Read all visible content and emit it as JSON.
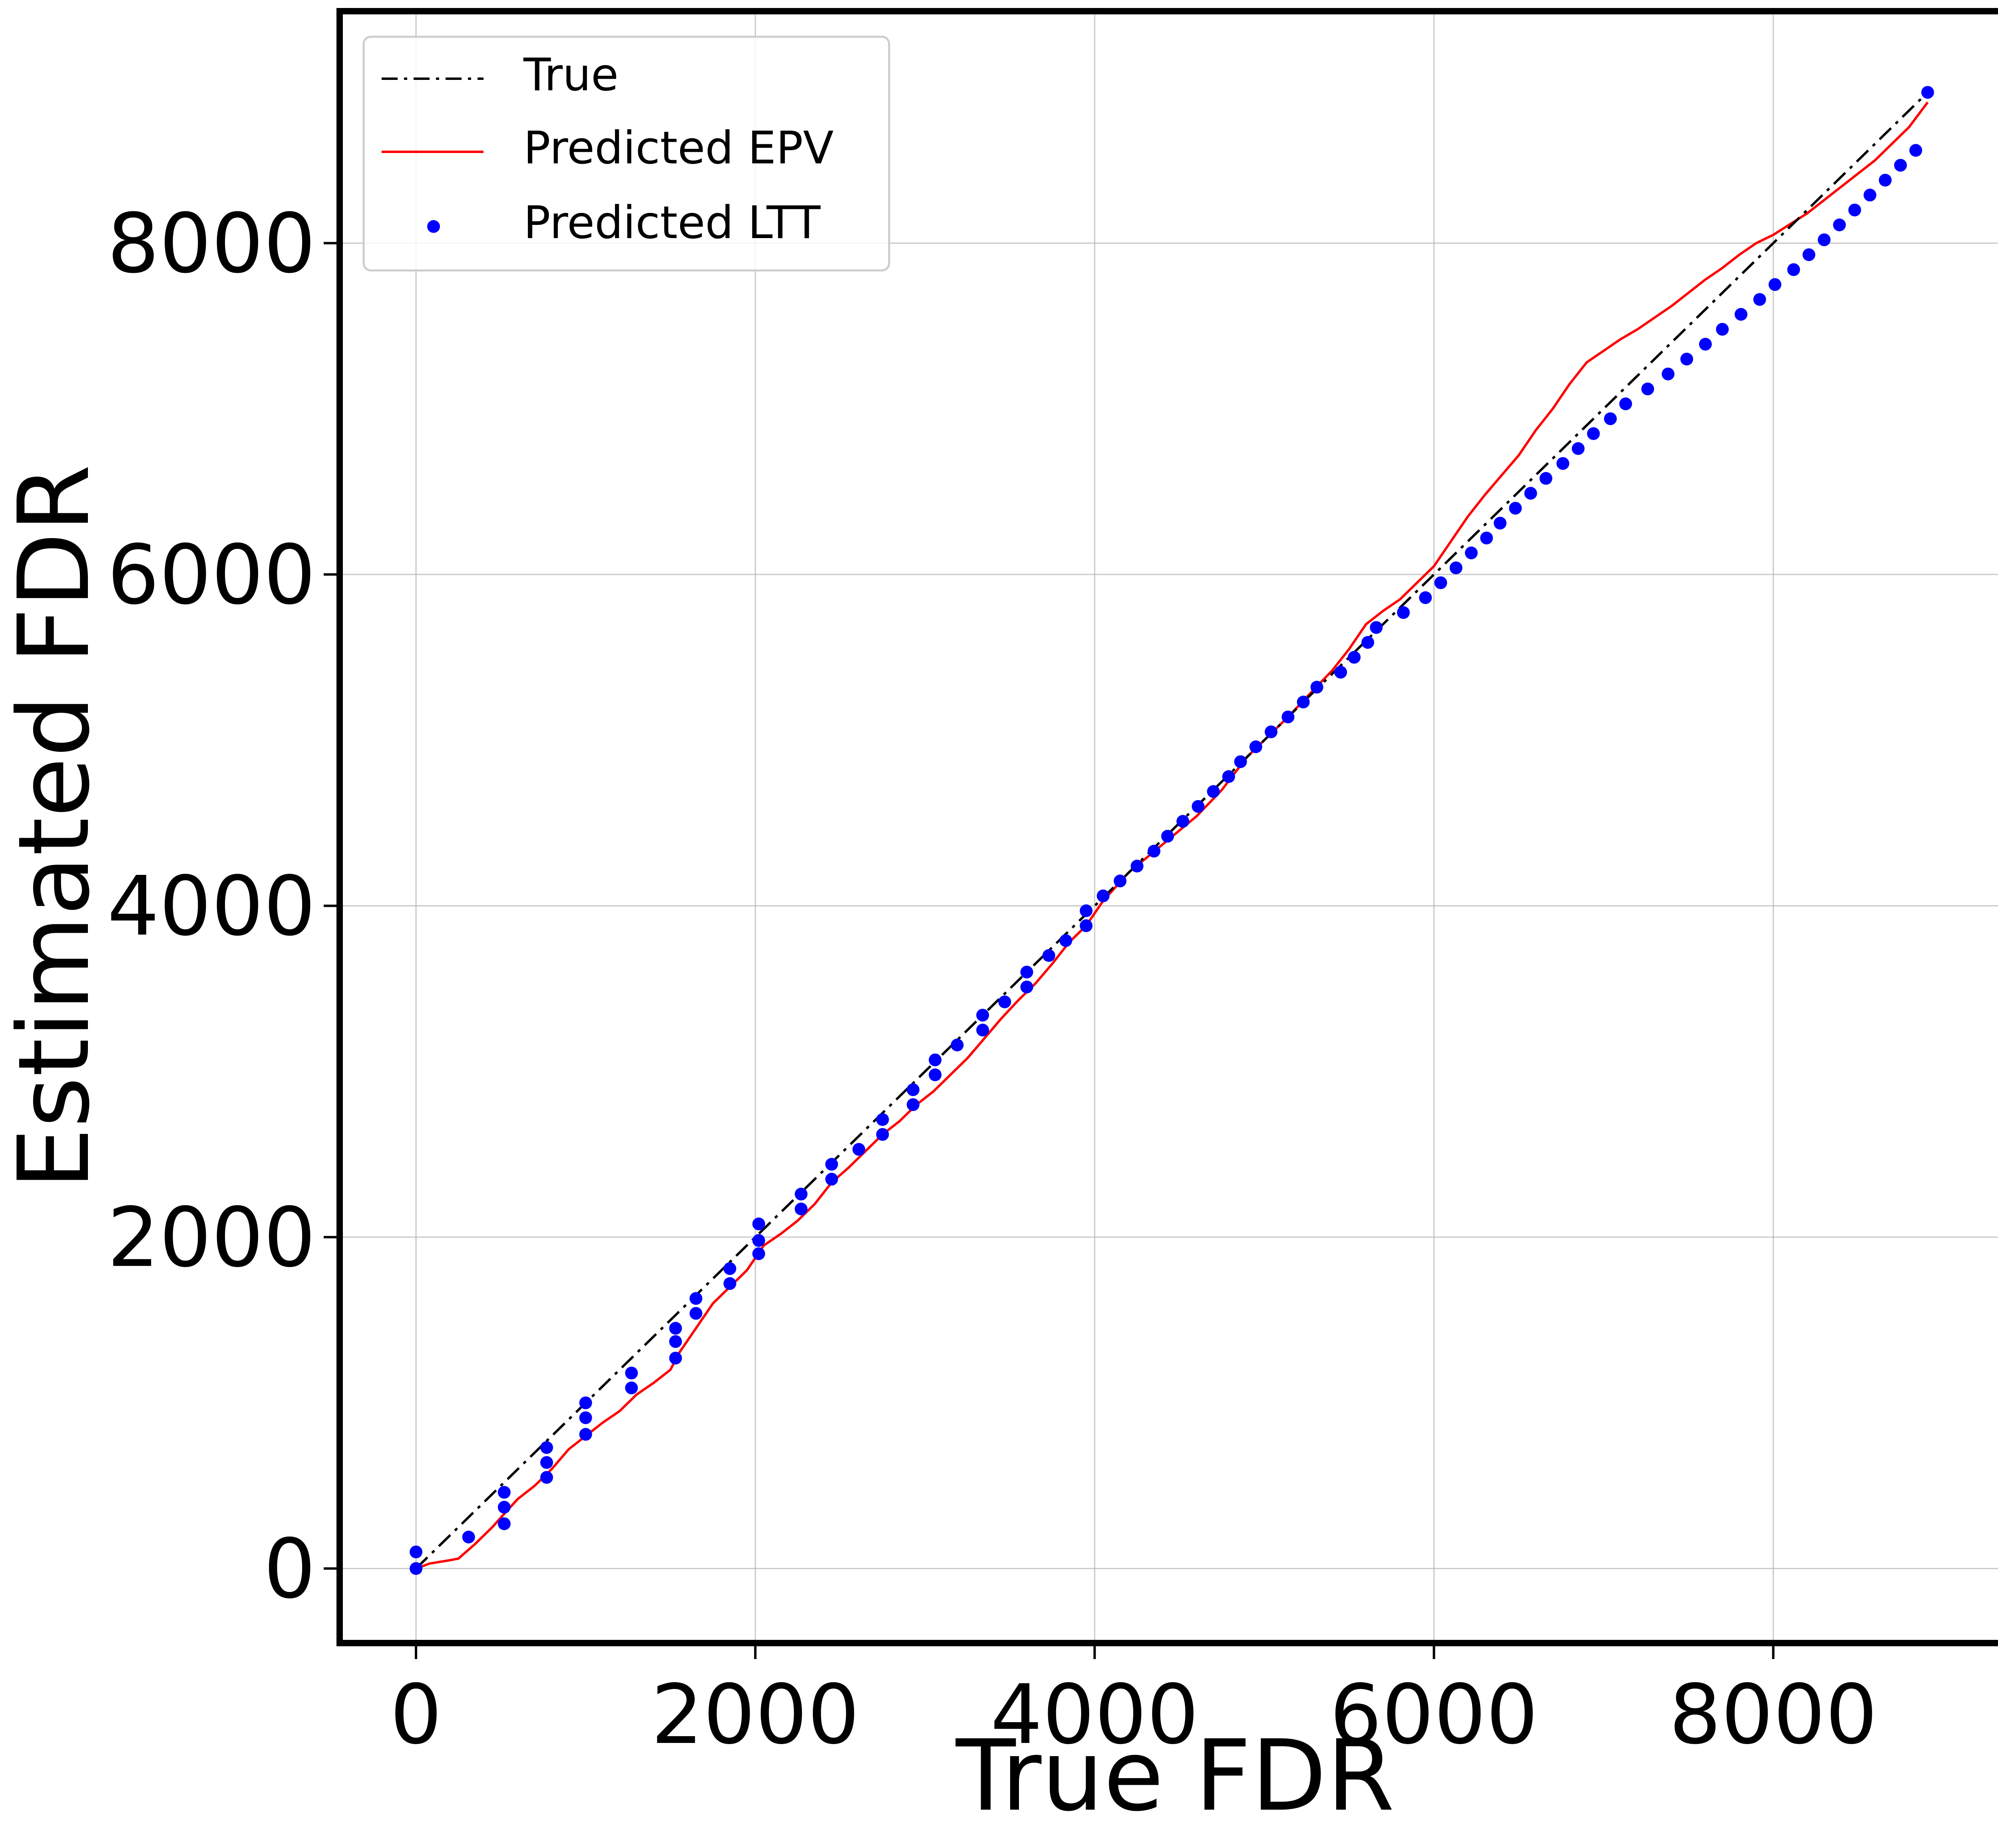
{
  "chart_data": {
    "type": "line",
    "xlabel": "True FDR",
    "ylabel": "Estimated FDR",
    "xlim": [
      -450,
      9400
    ],
    "ylim": [
      -450,
      9400
    ],
    "xticks": [
      0,
      2000,
      4000,
      6000,
      8000
    ],
    "yticks": [
      0,
      2000,
      4000,
      6000,
      8000
    ],
    "xtick_labels": [
      "0",
      "2000",
      "4000",
      "6000",
      "8000"
    ],
    "ytick_labels": [
      "0",
      "2000",
      "4000",
      "6000",
      "8000"
    ],
    "grid": true,
    "legend_position": "top-left",
    "series": [
      {
        "name": "True",
        "kind": "line",
        "style": "dashdot",
        "color": "#000000",
        "x": [
          0,
          8910
        ],
        "y": [
          0,
          8910
        ]
      },
      {
        "name": "Predicted EPV",
        "kind": "line",
        "style": "solid",
        "color": "#ff0000",
        "x": [
          0,
          80,
          200,
          250,
          350,
          450,
          520,
          600,
          700,
          800,
          900,
          1000,
          1100,
          1200,
          1300,
          1400,
          1500,
          1550,
          1650,
          1750,
          1850,
          1950,
          2050,
          2150,
          2250,
          2350,
          2450,
          2550,
          2650,
          2750,
          2850,
          2950,
          3050,
          3150,
          3250,
          3350,
          3450,
          3550,
          3650,
          3750,
          3850,
          3950,
          4050,
          4200,
          4400,
          4600,
          4750,
          4900,
          5050,
          5150,
          5250,
          5400,
          5500,
          5600,
          5700,
          5800,
          5900,
          6000,
          6100,
          6200,
          6300,
          6400,
          6500,
          6600,
          6700,
          6800,
          6900,
          7000,
          7100,
          7200,
          7300,
          7400,
          7500,
          7600,
          7700,
          7800,
          7900,
          8000,
          8200,
          8400,
          8600,
          8800,
          8910
        ],
        "y": [
          0,
          30,
          50,
          60,
          150,
          250,
          330,
          420,
          500,
          600,
          720,
          800,
          880,
          950,
          1050,
          1120,
          1200,
          1300,
          1450,
          1600,
          1700,
          1800,
          1950,
          2020,
          2100,
          2200,
          2330,
          2420,
          2520,
          2620,
          2700,
          2800,
          2880,
          2980,
          3080,
          3200,
          3320,
          3430,
          3530,
          3650,
          3780,
          3880,
          4030,
          4200,
          4370,
          4540,
          4700,
          4900,
          5050,
          5150,
          5260,
          5420,
          5550,
          5700,
          5780,
          5850,
          5950,
          6050,
          6200,
          6350,
          6480,
          6600,
          6720,
          6870,
          7000,
          7150,
          7280,
          7350,
          7420,
          7480,
          7550,
          7620,
          7700,
          7780,
          7850,
          7930,
          8000,
          8050,
          8180,
          8340,
          8500,
          8700,
          8850
        ]
      },
      {
        "name": "Predicted LTT",
        "kind": "scatter",
        "color": "#0000ff",
        "x": [
          0,
          0,
          310,
          520,
          520,
          520,
          770,
          770,
          770,
          1000,
          1000,
          1000,
          1270,
          1270,
          1530,
          1530,
          1530,
          1650,
          1650,
          1850,
          1850,
          2020,
          2020,
          2020,
          2270,
          2270,
          2450,
          2450,
          2610,
          2750,
          2750,
          2930,
          2930,
          3060,
          3060,
          3190,
          3340,
          3340,
          3470,
          3600,
          3600,
          3730,
          3830,
          3950,
          3950,
          4050,
          4150,
          4250,
          4350,
          4430,
          4520,
          4610,
          4700,
          4790,
          4860,
          4950,
          5040,
          5140,
          5230,
          5310,
          5450,
          5530,
          5610,
          5660,
          5820,
          5950,
          6040,
          6130,
          6220,
          6310,
          6390,
          6480,
          6570,
          6660,
          6760,
          6850,
          6940,
          7040,
          7130,
          7260,
          7380,
          7490,
          7600,
          7700,
          7810,
          7920,
          8010,
          8120,
          8210,
          8300,
          8390,
          8480,
          8570,
          8660,
          8750,
          8840,
          8910
        ],
        "y": [
          0,
          100,
          190,
          270,
          370,
          460,
          550,
          640,
          730,
          810,
          910,
          1000,
          1090,
          1180,
          1270,
          1370,
          1450,
          1540,
          1630,
          1720,
          1810,
          1900,
          1980,
          2080,
          2170,
          2260,
          2350,
          2440,
          2530,
          2620,
          2710,
          2800,
          2890,
          2980,
          3070,
          3160,
          3250,
          3340,
          3420,
          3510,
          3600,
          3700,
          3790,
          3880,
          3970,
          4060,
          4150,
          4240,
          4330,
          4420,
          4510,
          4600,
          4690,
          4780,
          4870,
          4960,
          5050,
          5140,
          5230,
          5320,
          5410,
          5500,
          5590,
          5680,
          5770,
          5860,
          5950,
          6040,
          6130,
          6220,
          6310,
          6400,
          6490,
          6580,
          6670,
          6760,
          6850,
          6940,
          7030,
          7120,
          7210,
          7300,
          7390,
          7480,
          7570,
          7660,
          7750,
          7840,
          7930,
          8020,
          8110,
          8200,
          8290,
          8380,
          8470,
          8560,
          8910
        ]
      }
    ]
  }
}
